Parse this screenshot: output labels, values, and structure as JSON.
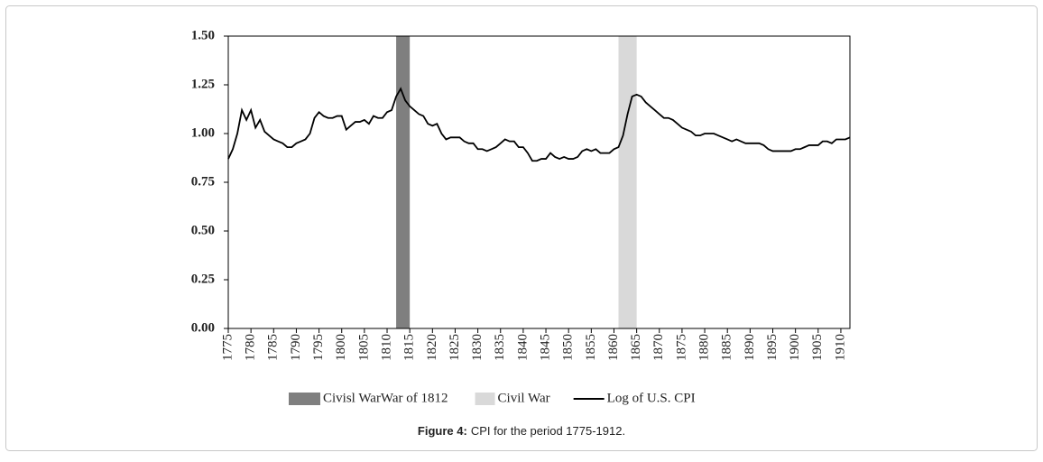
{
  "chart_data": {
    "type": "line",
    "caption_label": "Figure 4:",
    "caption": "CPI for the period 1775-1912.",
    "x": [
      1775,
      1776,
      1777,
      1778,
      1779,
      1780,
      1781,
      1782,
      1783,
      1784,
      1785,
      1786,
      1787,
      1788,
      1789,
      1790,
      1791,
      1792,
      1793,
      1794,
      1795,
      1796,
      1797,
      1798,
      1799,
      1800,
      1801,
      1802,
      1803,
      1804,
      1805,
      1806,
      1807,
      1808,
      1809,
      1810,
      1811,
      1812,
      1813,
      1814,
      1815,
      1816,
      1817,
      1818,
      1819,
      1820,
      1821,
      1822,
      1823,
      1824,
      1825,
      1826,
      1827,
      1828,
      1829,
      1830,
      1831,
      1832,
      1833,
      1834,
      1835,
      1836,
      1837,
      1838,
      1839,
      1840,
      1841,
      1842,
      1843,
      1844,
      1845,
      1846,
      1847,
      1848,
      1849,
      1850,
      1851,
      1852,
      1853,
      1854,
      1855,
      1856,
      1857,
      1858,
      1859,
      1860,
      1861,
      1862,
      1863,
      1864,
      1865,
      1866,
      1867,
      1868,
      1869,
      1870,
      1871,
      1872,
      1873,
      1874,
      1875,
      1876,
      1877,
      1878,
      1879,
      1880,
      1881,
      1882,
      1883,
      1884,
      1885,
      1886,
      1887,
      1888,
      1889,
      1890,
      1891,
      1892,
      1893,
      1894,
      1895,
      1896,
      1897,
      1898,
      1899,
      1900,
      1901,
      1902,
      1903,
      1904,
      1905,
      1906,
      1907,
      1908,
      1909,
      1910,
      1911,
      1912
    ],
    "series": [
      {
        "name": "Log of U.S. CPI",
        "color": "#000000",
        "values": [
          0.87,
          0.92,
          1.0,
          1.12,
          1.07,
          1.12,
          1.03,
          1.07,
          1.01,
          0.99,
          0.97,
          0.96,
          0.95,
          0.93,
          0.93,
          0.95,
          0.96,
          0.97,
          1.0,
          1.08,
          1.11,
          1.09,
          1.08,
          1.08,
          1.09,
          1.09,
          1.02,
          1.04,
          1.06,
          1.06,
          1.07,
          1.05,
          1.09,
          1.08,
          1.08,
          1.11,
          1.12,
          1.19,
          1.23,
          1.17,
          1.14,
          1.12,
          1.1,
          1.09,
          1.05,
          1.04,
          1.05,
          1.0,
          0.97,
          0.98,
          0.98,
          0.98,
          0.96,
          0.95,
          0.95,
          0.92,
          0.92,
          0.91,
          0.92,
          0.93,
          0.95,
          0.97,
          0.96,
          0.96,
          0.93,
          0.93,
          0.9,
          0.86,
          0.86,
          0.87,
          0.87,
          0.9,
          0.88,
          0.87,
          0.88,
          0.87,
          0.87,
          0.88,
          0.91,
          0.92,
          0.91,
          0.92,
          0.9,
          0.9,
          0.9,
          0.92,
          0.93,
          0.99,
          1.1,
          1.19,
          1.2,
          1.19,
          1.16,
          1.14,
          1.12,
          1.1,
          1.08,
          1.08,
          1.07,
          1.05,
          1.03,
          1.02,
          1.01,
          0.99,
          0.99,
          1.0,
          1.0,
          1.0,
          0.99,
          0.98,
          0.97,
          0.96,
          0.97,
          0.96,
          0.95,
          0.95,
          0.95,
          0.95,
          0.94,
          0.92,
          0.91,
          0.91,
          0.91,
          0.91,
          0.91,
          0.92,
          0.92,
          0.93,
          0.94,
          0.94,
          0.94,
          0.96,
          0.96,
          0.95,
          0.97,
          0.97,
          0.97,
          0.98
        ]
      }
    ],
    "bands": [
      {
        "name": "Civisl WarWar of 1812",
        "color": "#7f7f7f",
        "range": [
          1812,
          1815
        ]
      },
      {
        "name": "Civil War",
        "color": "#d9d9d9",
        "range": [
          1861,
          1865
        ]
      }
    ],
    "xlim": [
      1775,
      1912
    ],
    "xticks": [
      1775,
      1780,
      1785,
      1790,
      1795,
      1800,
      1805,
      1810,
      1815,
      1820,
      1825,
      1830,
      1835,
      1840,
      1845,
      1850,
      1855,
      1860,
      1865,
      1870,
      1875,
      1880,
      1885,
      1890,
      1895,
      1900,
      1905,
      1910
    ],
    "ylim": [
      0,
      1.5
    ],
    "yticks": [
      {
        "value": 0,
        "label": "0.00"
      },
      {
        "value": 0.25,
        "label": "0.25"
      },
      {
        "value": 0.5,
        "label": "0.50"
      },
      {
        "value": 0.75,
        "label": "0.75"
      },
      {
        "value": 1,
        "label": "1.00"
      },
      {
        "value": 1.25,
        "label": "1.25"
      },
      {
        "value": 1.5,
        "label": "1.50"
      }
    ],
    "grid": false
  }
}
